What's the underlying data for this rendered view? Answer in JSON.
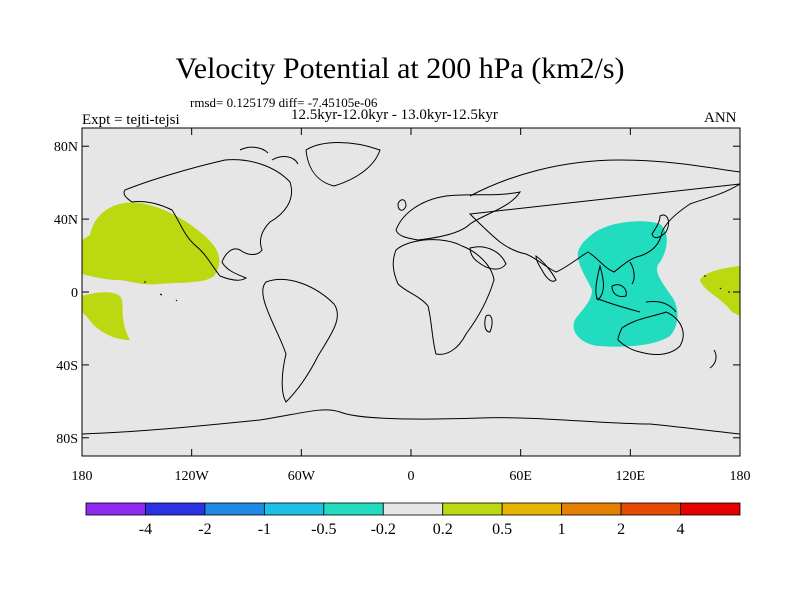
{
  "figure": {
    "title": "Velocity Potential at 200 hPa (km2/s)",
    "stats": "rmsd= 0.125179 diff= -7.45105e-06",
    "periods": "12.5kyr-12.0kyr - 13.0kyr-12.5kyr",
    "experiment": "Expt = tejti-tejsi",
    "season": "ANN"
  },
  "axes": {
    "lat_ticks": [
      "80N",
      "40N",
      "0",
      "40S",
      "80S"
    ],
    "lon_ticks": [
      "180",
      "120W",
      "60W",
      "0",
      "60E",
      "120E",
      "180"
    ]
  },
  "colorbar": {
    "colors": [
      "#8f2bf0",
      "#2a32e6",
      "#1e8ae6",
      "#1ec0e8",
      "#22dcc0",
      "#e6e6e6",
      "#bcd810",
      "#e6b600",
      "#e68000",
      "#e64c00",
      "#e60000"
    ],
    "labels": [
      "-4",
      "-2",
      "-1",
      "-0.5",
      "-0.2",
      "0.2",
      "0.5",
      "1",
      "2",
      "4"
    ]
  },
  "colors": {
    "background": "#e6e6e6",
    "positive_0p2_0p5": "#bcd810",
    "negative_0p2_0p5": "#22dcc0",
    "coastline": "#000000"
  }
}
